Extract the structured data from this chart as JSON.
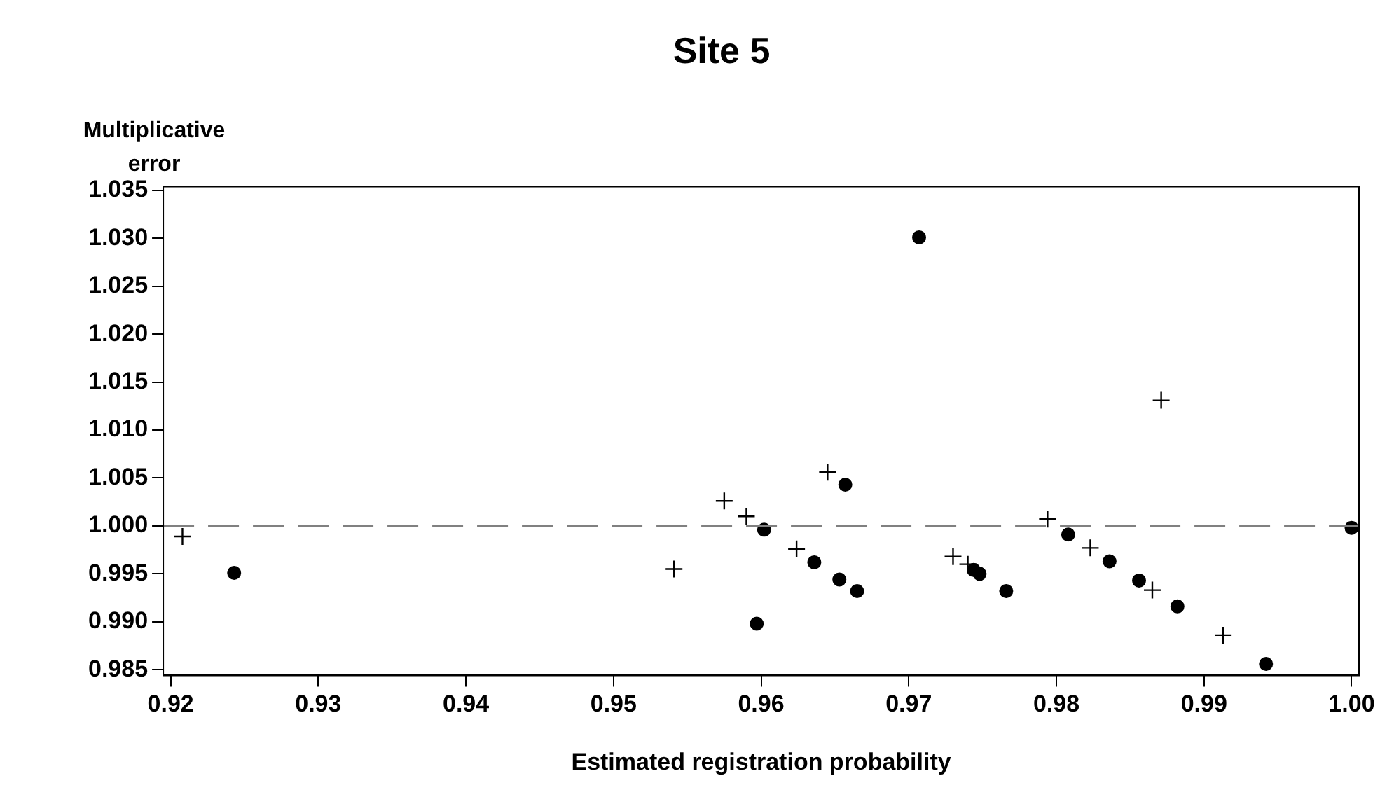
{
  "chart_data": {
    "type": "scatter",
    "title": "Site 5",
    "xlabel": "Estimated registration probability",
    "ylabel": "Multiplicative error",
    "xlim": [
      0.9195,
      1.0005
    ],
    "xticks": [
      {
        "value": 0.92,
        "label": "0.92"
      },
      {
        "value": 0.93,
        "label": "0.93"
      },
      {
        "value": 0.94,
        "label": "0.94"
      },
      {
        "value": 0.95,
        "label": "0.95"
      },
      {
        "value": 0.96,
        "label": "0.96"
      },
      {
        "value": 0.97,
        "label": "0.97"
      },
      {
        "value": 0.98,
        "label": "0.98"
      },
      {
        "value": 0.99,
        "label": "0.99"
      },
      {
        "value": 1,
        "label": "1.00"
      }
    ],
    "ylim": [
      0.9844,
      1.0354
    ],
    "yticks": [
      {
        "value": 0.985,
        "label": "0.985"
      },
      {
        "value": 0.99,
        "label": "0.990"
      },
      {
        "value": 0.995,
        "label": "0.995"
      },
      {
        "value": 1,
        "label": "1.000"
      },
      {
        "value": 1.005,
        "label": "1.005"
      },
      {
        "value": 1.01,
        "label": "1.010"
      },
      {
        "value": 1.015,
        "label": "1.015"
      },
      {
        "value": 1.02,
        "label": "1.020"
      },
      {
        "value": 1.025,
        "label": "1.025"
      },
      {
        "value": 1.03,
        "label": "1.030"
      },
      {
        "value": 1.035,
        "label": "1.035"
      }
    ],
    "grid": false,
    "legend": false,
    "ref_lines": [
      {
        "axis": "y",
        "value": 1,
        "color": "#808080",
        "line_style": "dashed"
      }
    ],
    "series": [
      {
        "color": "#000000",
        "marker": "circle",
        "x": [
          0.9243,
          0.9602,
          0.9597,
          0.9657,
          0.9707,
          0.9636,
          0.9653,
          0.9665,
          0.9744,
          0.9748,
          0.9766,
          0.9808,
          0.9836,
          0.9856,
          0.9882,
          0.9942,
          1.0
        ],
        "values": [
          0.9951,
          0.9996,
          0.9898,
          1.0043,
          1.0301,
          0.9962,
          0.9944,
          0.9932,
          0.9954,
          0.995,
          0.9932,
          0.9991,
          0.9963,
          0.9943,
          0.9916,
          0.9856,
          0.9998
        ]
      },
      {
        "color": "#000000",
        "marker": "cross",
        "x": [
          0.9208,
          0.9541,
          0.9575,
          0.959,
          0.9645,
          0.9624,
          0.973,
          0.974,
          0.9794,
          0.9823,
          0.9865,
          0.9871,
          0.9913
        ],
        "values": [
          0.9989,
          0.9955,
          1.0026,
          1.001,
          1.0056,
          0.9976,
          0.9968,
          0.996,
          1.0007,
          0.9977,
          0.9933,
          1.0131,
          0.9886
        ]
      }
    ]
  }
}
